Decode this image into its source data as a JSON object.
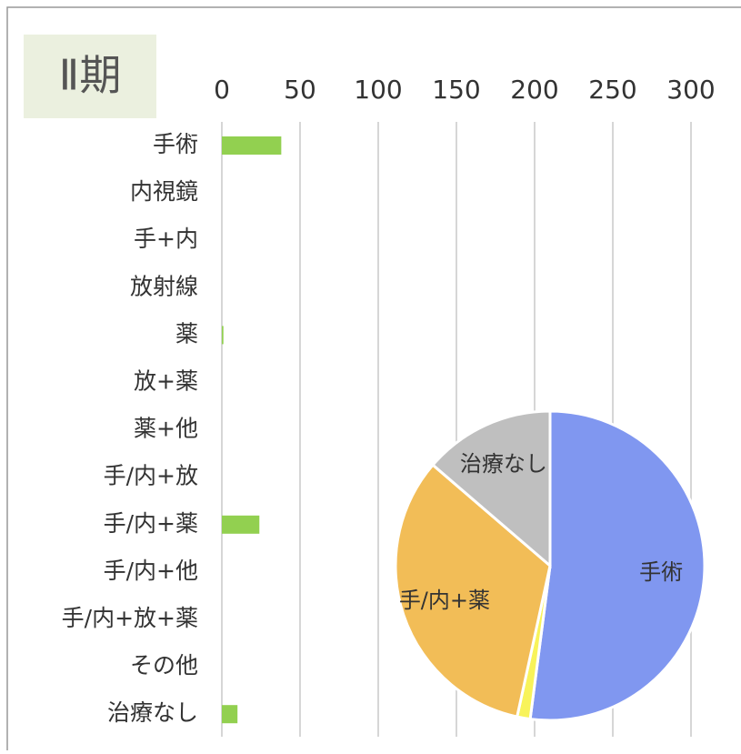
{
  "chart_data": [
    {
      "type": "bar",
      "title": "Ⅱ期",
      "orientation": "horizontal",
      "categories": [
        "手術",
        "内視鏡",
        "手+内",
        "放射線",
        "薬",
        "放+薬",
        "薬+他",
        "手/内+放",
        "手/内+薬",
        "手/内+他",
        "手/内+放+薬",
        "その他",
        "治療なし"
      ],
      "values": [
        38,
        0,
        0,
        0,
        1,
        0,
        0,
        0,
        24,
        0,
        0,
        0,
        10
      ],
      "color": "#92d050",
      "xlim": [
        0,
        300
      ],
      "xticks": [
        0,
        50,
        100,
        150,
        200,
        250,
        300
      ],
      "grid": true
    },
    {
      "type": "pie",
      "categories": [
        "手術",
        null,
        "手/内+薬",
        "治療なし"
      ],
      "values": [
        38,
        1,
        24,
        10
      ],
      "colors": [
        "#8097f0",
        "#f8f35a",
        "#f2bd57",
        "#bfbfbf"
      ]
    }
  ]
}
